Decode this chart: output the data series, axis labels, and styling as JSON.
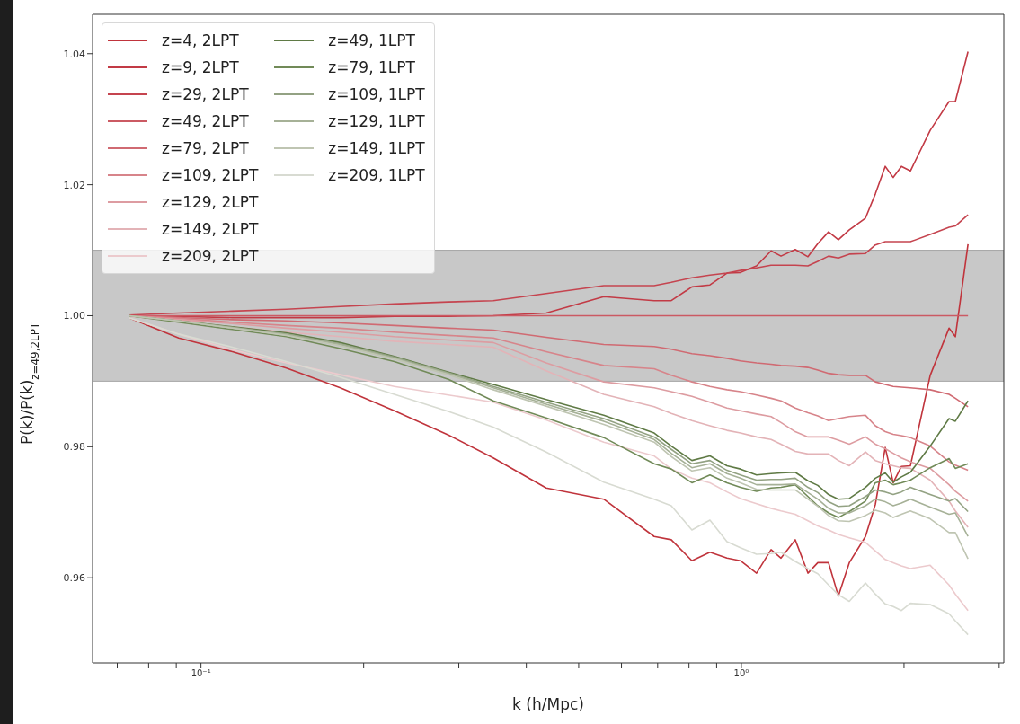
{
  "chart_data": {
    "type": "line",
    "xlabel": "k (h/Mpc)",
    "ylabel": "P(k)/P(k)$_{z=49,2LPT}$",
    "log": "x",
    "grid": false,
    "legend": "upper left",
    "line_style": "solid",
    "marker": "none",
    "xlim": [
      0.063,
      3.06
    ],
    "ylim": [
      0.947,
      1.046
    ],
    "xticks": [
      {
        "value": 0.07,
        "label": null
      },
      {
        "value": 0.08,
        "label": null
      },
      {
        "value": 0.09,
        "label": null
      },
      {
        "value": 0.1,
        "label": "10⁻¹"
      },
      {
        "value": 0.2,
        "label": null
      },
      {
        "value": 0.3,
        "label": null
      },
      {
        "value": 0.4,
        "label": null
      },
      {
        "value": 0.5,
        "label": null
      },
      {
        "value": 0.6,
        "label": null
      },
      {
        "value": 0.7,
        "label": null
      },
      {
        "value": 0.8,
        "label": null
      },
      {
        "value": 0.9,
        "label": null
      },
      {
        "value": 1,
        "label": "10⁰"
      },
      {
        "value": 2,
        "label": null
      },
      {
        "value": 3,
        "label": null
      }
    ],
    "yticks": [
      0.96,
      0.98,
      {
        "value": 1,
        "label": "1.00"
      },
      1.02,
      1.04
    ],
    "bands": [
      {
        "axis": "y",
        "from": 0.99,
        "to": 1.01,
        "color": "#c8c8c8"
      }
    ],
    "x": [
      0.0736,
      0.0909,
      0.1143,
      0.1439,
      0.1811,
      0.2279,
      0.2869,
      0.3474,
      0.4354,
      0.5563,
      0.6897,
      0.7418,
      0.81,
      0.8747,
      0.9405,
      0.996,
      1.067,
      1.135,
      1.184,
      1.258,
      1.328,
      1.385,
      1.45,
      1.512,
      1.584,
      1.697,
      1.77,
      1.846,
      1.91,
      1.978,
      2.055,
      2.236,
      2.423,
      2.489,
      2.627
    ],
    "series": [
      {
        "name": "z=4, 2LPT",
        "color": "#c0343c",
        "values": [
          0.9997,
          0.9966,
          0.9945,
          0.992,
          0.989,
          0.9855,
          0.9818,
          0.9783,
          0.9737,
          0.972,
          0.9663,
          0.9658,
          0.9626,
          0.9639,
          0.963,
          0.9626,
          0.9607,
          0.9643,
          0.963,
          0.9658,
          0.9607,
          0.9623,
          0.9623,
          0.9572,
          0.9623,
          0.9663,
          0.9712,
          0.9799,
          0.9745,
          0.977,
          0.9771,
          0.9909,
          0.9981,
          0.9968,
          1.0109
        ]
      },
      {
        "name": "z=9, 2LPT",
        "color": "#c23a45",
        "values": [
          1,
          0.9999,
          0.9997,
          0.9997,
          0.9997,
          0.9999,
          0.9999,
          1,
          1.0004,
          1.0029,
          1.0023,
          1.0023,
          1.0044,
          1.0047,
          1.0065,
          1.0066,
          1.0076,
          1.0099,
          1.0091,
          1.0101,
          1.009,
          1.011,
          1.0128,
          1.0116,
          1.0131,
          1.0149,
          1.0186,
          1.0228,
          1.0211,
          1.0228,
          1.0221,
          1.0283,
          1.0327,
          1.0327,
          1.0403
        ]
      },
      {
        "name": "z=29, 2LPT",
        "color": "#c5444f",
        "values": [
          1.0001,
          1.0004,
          1.0007,
          1.001,
          1.0014,
          1.0018,
          1.0021,
          1.0023,
          1.0034,
          1.0046,
          1.0046,
          1.0051,
          1.0058,
          1.0062,
          1.0065,
          1.0069,
          1.0073,
          1.0077,
          1.0077,
          1.0077,
          1.0076,
          1.0083,
          1.0091,
          1.0088,
          1.0094,
          1.0095,
          1.0108,
          1.0113,
          1.0113,
          1.0113,
          1.0113,
          1.0124,
          1.0135,
          1.0137,
          1.0154
        ]
      },
      {
        "name": "z=49, 2LPT",
        "color": "#cb5a63",
        "values": [
          1,
          1,
          1,
          1,
          1,
          1,
          1,
          1,
          1,
          1,
          1,
          1,
          1,
          1,
          1,
          1,
          1,
          1,
          1,
          1,
          1,
          1,
          1,
          1,
          1,
          1,
          1,
          1,
          1,
          1,
          1,
          1,
          1,
          1,
          1
        ]
      },
      {
        "name": "z=79, 2LPT",
        "color": "#d06a72",
        "values": [
          1,
          0.9997,
          0.9994,
          0.9992,
          0.9989,
          0.9985,
          0.9981,
          0.9978,
          0.9967,
          0.9956,
          0.9953,
          0.9949,
          0.9942,
          0.9939,
          0.9935,
          0.9931,
          0.9928,
          0.9926,
          0.9924,
          0.9923,
          0.9921,
          0.9917,
          0.9912,
          0.991,
          0.9909,
          0.9909,
          0.9899,
          0.9895,
          0.9892,
          0.9891,
          0.989,
          0.9887,
          0.988,
          0.9874,
          0.9861
        ]
      },
      {
        "name": "z=109, 2LPT",
        "color": "#d7848a",
        "values": [
          1,
          0.9996,
          0.999,
          0.9985,
          0.9981,
          0.9975,
          0.997,
          0.9966,
          0.9945,
          0.9924,
          0.9919,
          0.9909,
          0.9899,
          0.9892,
          0.9887,
          0.9884,
          0.9879,
          0.9874,
          0.987,
          0.9859,
          0.9852,
          0.9847,
          0.984,
          0.9843,
          0.9846,
          0.9848,
          0.9832,
          0.9823,
          0.9819,
          0.9817,
          0.9814,
          0.9801,
          0.9777,
          0.9772,
          0.9764
        ]
      },
      {
        "name": "z=129, 2LPT",
        "color": "#dd9ca1",
        "values": [
          1,
          0.9994,
          0.9988,
          0.9981,
          0.9975,
          0.9968,
          0.9963,
          0.9959,
          0.9928,
          0.9899,
          0.989,
          0.9884,
          0.9877,
          0.9868,
          0.9859,
          0.9855,
          0.985,
          0.9846,
          0.9837,
          0.9823,
          0.9815,
          0.9815,
          0.9815,
          0.981,
          0.9804,
          0.9815,
          0.9804,
          0.9797,
          0.979,
          0.9783,
          0.9777,
          0.9767,
          0.9742,
          0.9732,
          0.9717
        ]
      },
      {
        "name": "z=149, 2LPT",
        "color": "#e3b3b7",
        "values": [
          0.9999,
          0.9992,
          0.9983,
          0.9975,
          0.9968,
          0.9961,
          0.9956,
          0.9952,
          0.9916,
          0.988,
          0.9861,
          0.9851,
          0.984,
          0.9832,
          0.9825,
          0.9821,
          0.9815,
          0.9811,
          0.9804,
          0.9793,
          0.9789,
          0.9789,
          0.9789,
          0.9779,
          0.9771,
          0.9792,
          0.9779,
          0.9774,
          0.9771,
          0.9768,
          0.9767,
          0.9749,
          0.9717,
          0.9702,
          0.9677
        ]
      },
      {
        "name": "z=209, 2LPT",
        "color": "#eccacd",
        "values": [
          0.9997,
          0.9972,
          0.9948,
          0.9928,
          0.991,
          0.9892,
          0.9879,
          0.9868,
          0.9841,
          0.9807,
          0.9786,
          0.9766,
          0.9752,
          0.9745,
          0.9731,
          0.9721,
          0.9713,
          0.9706,
          0.9702,
          0.9697,
          0.9687,
          0.9679,
          0.9673,
          0.9666,
          0.9661,
          0.9654,
          0.9641,
          0.9628,
          0.9623,
          0.9618,
          0.9614,
          0.9619,
          0.9589,
          0.9575,
          0.955
        ]
      },
      {
        "name": "z=49, 1LPT",
        "color": "#5f7a45",
        "values": [
          1,
          0.9992,
          0.9983,
          0.9974,
          0.9959,
          0.9938,
          0.9914,
          0.9895,
          0.9872,
          0.9848,
          0.9821,
          0.9801,
          0.9779,
          0.9786,
          0.9771,
          0.9766,
          0.9757,
          0.9759,
          0.976,
          0.9761,
          0.9748,
          0.9741,
          0.9727,
          0.972,
          0.9721,
          0.9738,
          0.9752,
          0.976,
          0.9746,
          0.9754,
          0.9761,
          0.9801,
          0.9843,
          0.9839,
          0.987
        ]
      },
      {
        "name": "z=79, 1LPT",
        "color": "#718a58",
        "values": [
          1,
          0.999,
          0.9979,
          0.9968,
          0.995,
          0.993,
          0.9903,
          0.987,
          0.9844,
          0.9814,
          0.9774,
          0.9766,
          0.9745,
          0.9757,
          0.9745,
          0.9738,
          0.9732,
          0.9737,
          0.9738,
          0.9742,
          0.9724,
          0.971,
          0.9699,
          0.9692,
          0.9701,
          0.9717,
          0.9745,
          0.9749,
          0.9742,
          0.9745,
          0.9749,
          0.9768,
          0.9782,
          0.9767,
          0.9774
        ]
      },
      {
        "name": "z=109, 1LPT",
        "color": "#93a283",
        "values": [
          1,
          0.9992,
          0.9982,
          0.9972,
          0.9957,
          0.9937,
          0.9913,
          0.9892,
          0.9868,
          0.9843,
          0.9815,
          0.9796,
          0.9774,
          0.9779,
          0.9764,
          0.9757,
          0.9749,
          0.975,
          0.975,
          0.9752,
          0.9738,
          0.973,
          0.9716,
          0.9709,
          0.971,
          0.9724,
          0.9734,
          0.9731,
          0.9727,
          0.9731,
          0.9738,
          0.9727,
          0.9717,
          0.9721,
          0.9701
        ]
      },
      {
        "name": "z=129, 1LPT",
        "color": "#a6b197",
        "values": [
          1,
          0.9992,
          0.9982,
          0.9971,
          0.9956,
          0.9935,
          0.9912,
          0.989,
          0.9865,
          0.9839,
          0.9811,
          0.979,
          0.9768,
          0.9774,
          0.9759,
          0.9752,
          0.9742,
          0.9742,
          0.9742,
          0.9743,
          0.973,
          0.972,
          0.9706,
          0.9699,
          0.9699,
          0.971,
          0.972,
          0.9716,
          0.971,
          0.9714,
          0.972,
          0.9708,
          0.9697,
          0.9699,
          0.9663
        ]
      },
      {
        "name": "z=149, 1LPT",
        "color": "#bfc5b2",
        "values": [
          1,
          0.9992,
          0.9981,
          0.997,
          0.9954,
          0.9934,
          0.991,
          0.9887,
          0.9862,
          0.9834,
          0.9807,
          0.9785,
          0.9763,
          0.9768,
          0.9752,
          0.9745,
          0.9735,
          0.9734,
          0.9734,
          0.9734,
          0.972,
          0.9709,
          0.9695,
          0.9687,
          0.9686,
          0.9695,
          0.9703,
          0.9699,
          0.9692,
          0.9697,
          0.9702,
          0.969,
          0.9669,
          0.9669,
          0.9629
        ]
      },
      {
        "name": "z=209, 1LPT",
        "color": "#d8dbd2",
        "values": [
          0.9997,
          0.9972,
          0.9952,
          0.993,
          0.9906,
          0.988,
          0.9854,
          0.983,
          0.9792,
          0.9746,
          0.972,
          0.971,
          0.9673,
          0.9688,
          0.9655,
          0.9646,
          0.9636,
          0.9637,
          0.9639,
          0.9625,
          0.9614,
          0.9606,
          0.9589,
          0.9574,
          0.9564,
          0.9592,
          0.9575,
          0.956,
          0.9556,
          0.955,
          0.9561,
          0.9559,
          0.9545,
          0.9534,
          0.9513
        ]
      }
    ]
  }
}
